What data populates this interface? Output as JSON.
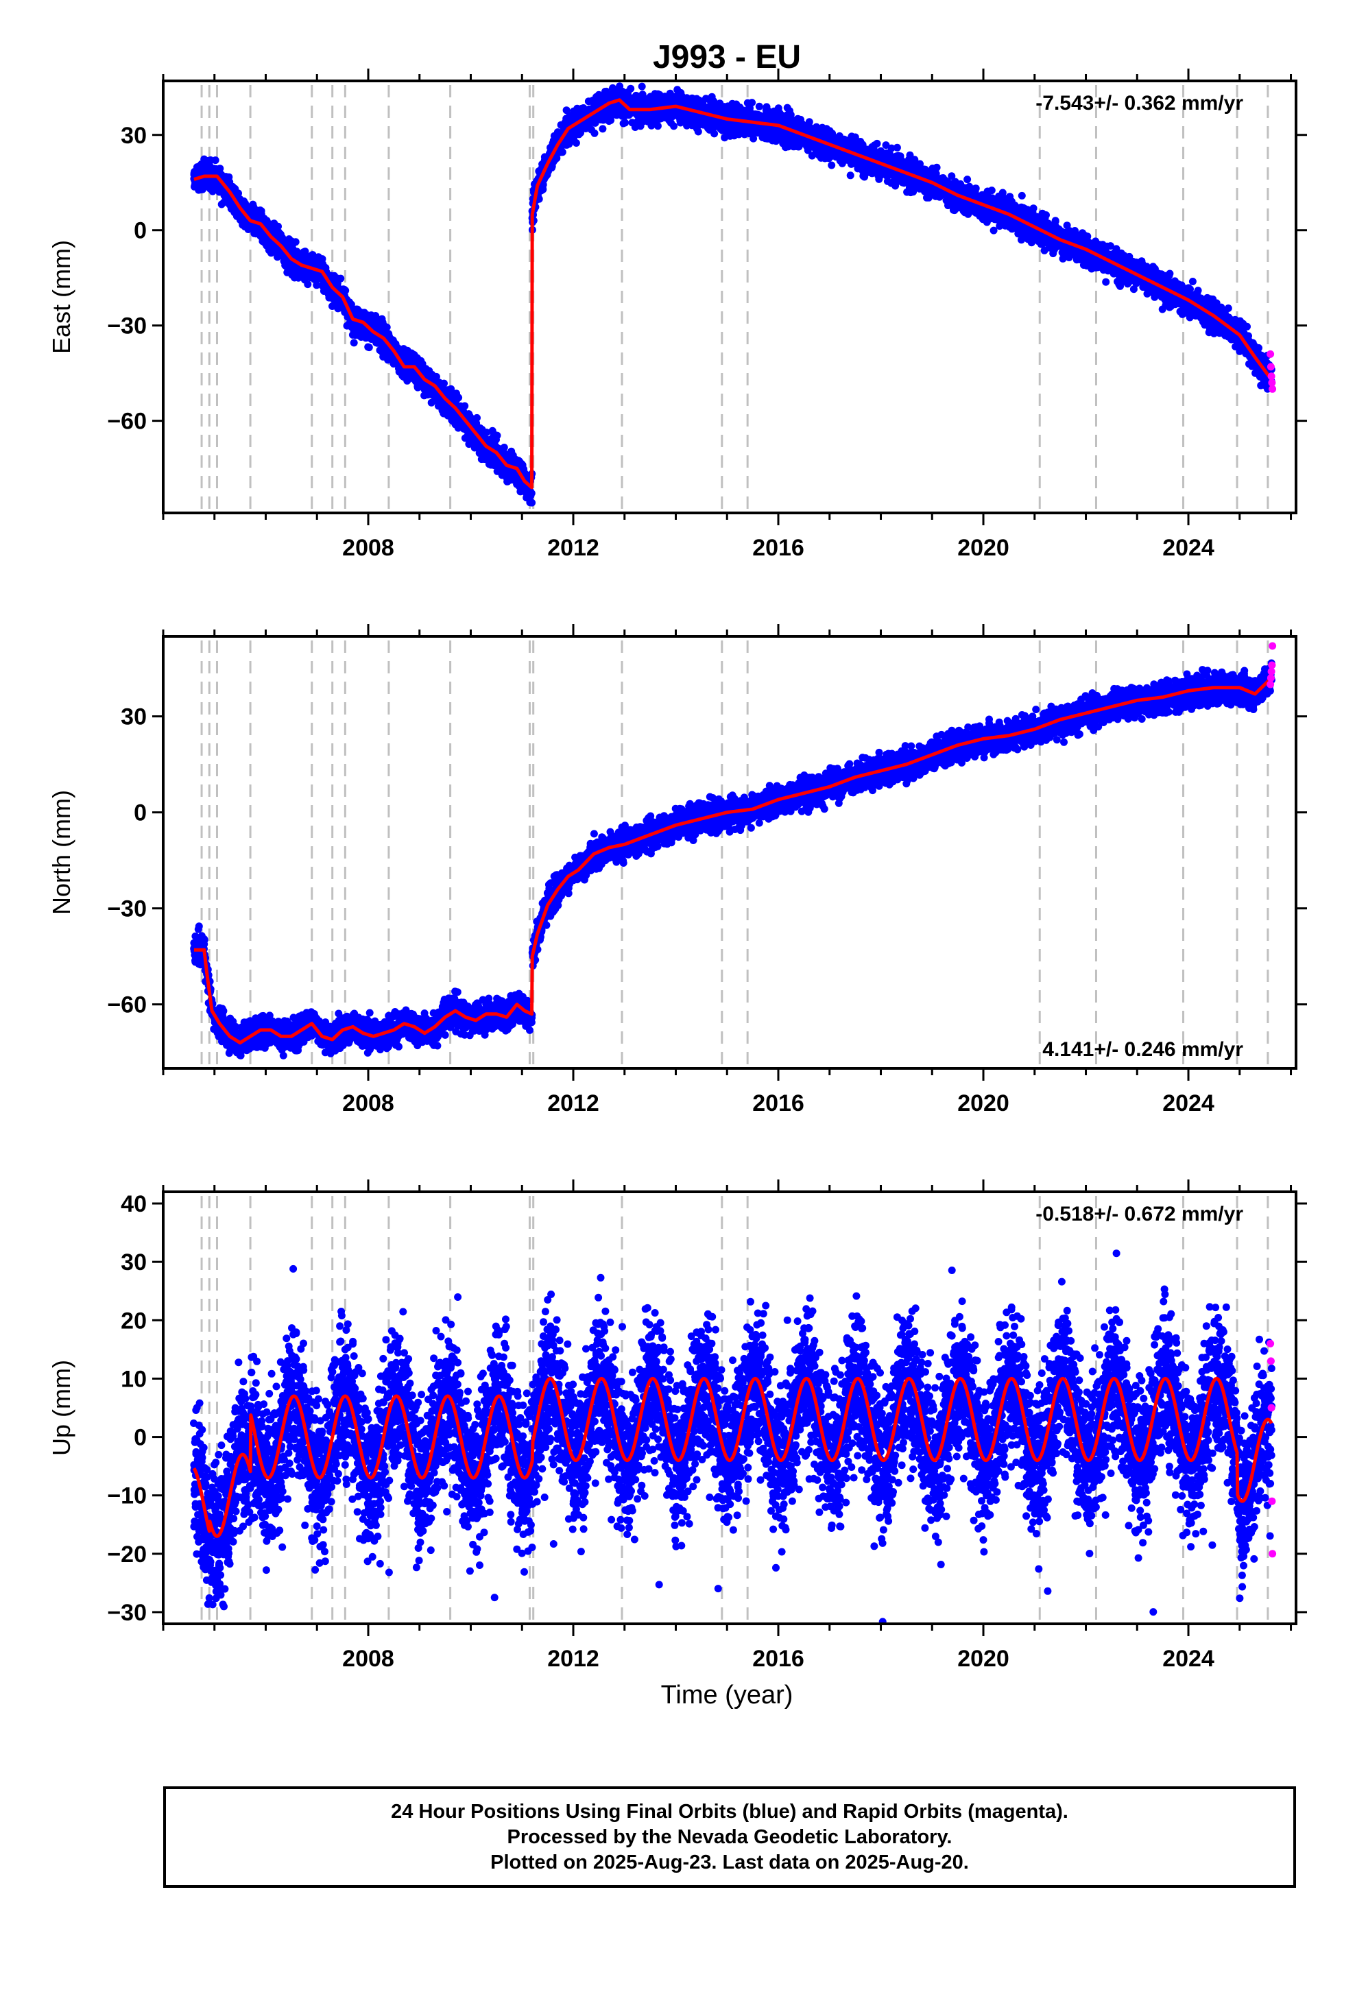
{
  "title": "J993 - EU",
  "colors": {
    "final_orbits": "#0000ff",
    "rapid_orbits": "#ff00ff",
    "model_fit": "#ff0000",
    "event_lines": "#c0c0c0",
    "axes": "#000000"
  },
  "xlabel": "Time (year)",
  "caption": {
    "line1": "24 Hour Positions Using Final Orbits (blue) and Rapid Orbits (magenta).",
    "line2": "Processed by the Nevada Geodetic Laboratory.",
    "line3": "Plotted on 2025-Aug-23. Last data on 2025-Aug-20."
  },
  "chart_data": [
    {
      "type": "scatter",
      "component": "east",
      "ylabel": "East (mm)",
      "rate_label": "-7.543+/- 0.362 mm/yr",
      "rate_label_position": "top-right",
      "xlim": [
        2004.0,
        2026.1
      ],
      "ylim": [
        -89,
        47
      ],
      "xticks": [
        2008,
        2012,
        2016,
        2020,
        2024
      ],
      "yticks": [
        30,
        0,
        -30,
        -60
      ],
      "grid": false,
      "event_lines": [
        2004.75,
        2004.9,
        2005.05,
        2005.7,
        2006.9,
        2007.3,
        2007.55,
        2008.4,
        2009.6,
        2011.15,
        2011.22,
        2012.95,
        2014.9,
        2015.4,
        2021.1,
        2022.2,
        2023.9,
        2024.95,
        2025.55
      ],
      "series": [
        {
          "role": "model",
          "x": [
            2004.6,
            2004.8,
            2004.85,
            2005.05,
            2005.3,
            2005.5,
            2005.7,
            2005.9,
            2006.1,
            2006.3,
            2006.5,
            2006.7,
            2006.9,
            2007.1,
            2007.3,
            2007.5,
            2007.7,
            2007.9,
            2008.1,
            2008.3,
            2008.5,
            2008.7,
            2008.9,
            2009.1,
            2009.3,
            2009.5,
            2009.7,
            2009.9,
            2010.1,
            2010.3,
            2010.5,
            2010.7,
            2010.9,
            2011.05,
            2011.19,
            2011.2,
            2011.3,
            2011.5,
            2011.7,
            2011.9,
            2012.1,
            2012.3,
            2012.5,
            2012.7,
            2012.9,
            2013.1,
            2013.5,
            2014.0,
            2014.5,
            2015.0,
            2015.5,
            2016.0,
            2016.5,
            2017.0,
            2017.5,
            2018.0,
            2018.5,
            2019.0,
            2019.5,
            2020.0,
            2020.5,
            2021.0,
            2021.5,
            2022.0,
            2022.5,
            2023.0,
            2023.5,
            2024.0,
            2024.5,
            2025.0,
            2025.3,
            2025.62
          ],
          "y": [
            16,
            17,
            17,
            17,
            12,
            7,
            3,
            2,
            -2,
            -5,
            -9,
            -11,
            -12,
            -13,
            -18,
            -21,
            -28,
            -29,
            -32,
            -34,
            -38,
            -43,
            -43,
            -47,
            -49,
            -53,
            -56,
            -60,
            -64,
            -68,
            -70,
            -74,
            -75,
            -79,
            -81,
            5,
            14,
            21,
            27,
            32,
            34,
            36,
            38,
            40,
            41,
            38,
            38,
            39,
            37,
            35,
            34,
            33,
            30,
            27,
            24,
            21,
            18,
            15,
            11,
            8,
            5,
            1,
            -3,
            -6,
            -10,
            -14,
            -18,
            -22,
            -27,
            -33,
            -40,
            -47
          ]
        },
        {
          "role": "rapid_orbits",
          "x": [
            2025.6,
            2025.61,
            2025.62,
            2025.63,
            2025.64
          ],
          "y": [
            -39,
            -43,
            -46,
            -48,
            -50
          ]
        }
      ]
    },
    {
      "type": "scatter",
      "component": "north",
      "ylabel": "North (mm)",
      "rate_label": "4.141+/- 0.246 mm/yr",
      "rate_label_position": "bottom-right",
      "xlim": [
        2004.0,
        2026.1
      ],
      "ylim": [
        -80,
        55
      ],
      "xticks": [
        2008,
        2012,
        2016,
        2020,
        2024
      ],
      "yticks": [
        30,
        0,
        -30,
        -60
      ],
      "grid": false,
      "event_lines": [
        2004.75,
        2004.9,
        2005.05,
        2005.7,
        2006.9,
        2007.3,
        2007.55,
        2008.4,
        2009.6,
        2011.15,
        2011.22,
        2012.95,
        2014.9,
        2015.4,
        2021.1,
        2022.2,
        2023.9,
        2024.95,
        2025.55
      ],
      "series": [
        {
          "role": "model",
          "x": [
            2004.6,
            2004.8,
            2004.85,
            2004.95,
            2005.1,
            2005.3,
            2005.5,
            2005.7,
            2005.9,
            2006.1,
            2006.3,
            2006.5,
            2006.7,
            2006.9,
            2007.1,
            2007.3,
            2007.5,
            2007.7,
            2007.9,
            2008.1,
            2008.3,
            2008.5,
            2008.7,
            2008.9,
            2009.1,
            2009.3,
            2009.5,
            2009.7,
            2009.9,
            2010.1,
            2010.3,
            2010.5,
            2010.7,
            2010.9,
            2011.05,
            2011.19,
            2011.2,
            2011.3,
            2011.5,
            2011.7,
            2011.9,
            2012.1,
            2012.4,
            2012.7,
            2013.0,
            2013.5,
            2014.0,
            2014.5,
            2015.0,
            2015.5,
            2016.0,
            2016.5,
            2017.0,
            2017.5,
            2018.0,
            2018.5,
            2019.0,
            2019.5,
            2020.0,
            2020.5,
            2021.0,
            2021.5,
            2022.0,
            2022.5,
            2023.0,
            2023.5,
            2024.0,
            2024.5,
            2025.0,
            2025.3,
            2025.62
          ],
          "y": [
            -43,
            -43,
            -50,
            -62,
            -66,
            -70,
            -72,
            -70,
            -68,
            -68,
            -70,
            -70,
            -68,
            -66,
            -70,
            -71,
            -68,
            -67,
            -69,
            -70,
            -69,
            -68,
            -66,
            -67,
            -69,
            -67,
            -64,
            -62,
            -64,
            -65,
            -63,
            -63,
            -64,
            -60,
            -62,
            -63,
            -45,
            -38,
            -29,
            -24,
            -20,
            -18,
            -13,
            -11,
            -10,
            -7,
            -4,
            -2,
            0,
            1,
            4,
            6,
            8,
            11,
            13,
            15,
            18,
            21,
            23,
            24,
            26,
            29,
            31,
            33,
            35,
            36,
            38,
            39,
            39,
            37,
            42
          ]
        },
        {
          "role": "rapid_orbits",
          "x": [
            2025.6,
            2025.61,
            2025.62,
            2025.63,
            2025.64
          ],
          "y": [
            40,
            42,
            44,
            46,
            52
          ]
        }
      ]
    },
    {
      "type": "scatter",
      "component": "up",
      "ylabel": "Up (mm)",
      "rate_label": "-0.518+/- 0.672 mm/yr",
      "rate_label_position": "top-right",
      "xlim": [
        2004.0,
        2026.1
      ],
      "ylim": [
        -32,
        42
      ],
      "xticks": [
        2008,
        2012,
        2016,
        2020,
        2024
      ],
      "yticks": [
        40,
        30,
        20,
        10,
        0,
        -10,
        -20,
        -30
      ],
      "grid": false,
      "event_lines": [
        2004.75,
        2004.9,
        2005.05,
        2005.7,
        2006.9,
        2007.3,
        2007.55,
        2008.4,
        2009.6,
        2011.15,
        2011.22,
        2012.95,
        2014.9,
        2015.4,
        2021.1,
        2022.2,
        2023.9,
        2024.95,
        2025.55
      ],
      "annual_model": {
        "x_start": 2004.6,
        "x_end": 2025.62,
        "offsets": [
          {
            "from": 2004.6,
            "to": 2004.9,
            "mean": -12
          },
          {
            "from": 2004.9,
            "to": 2005.7,
            "mean": -10
          },
          {
            "from": 2005.7,
            "to": 2011.2,
            "mean": 0
          },
          {
            "from": 2011.2,
            "to": 2024.95,
            "mean": 3
          },
          {
            "from": 2024.95,
            "to": 2025.62,
            "mean": -4
          }
        ],
        "amplitude": 7,
        "peak_phase": 0.55
      },
      "series": [
        {
          "role": "rapid_orbits",
          "x": [
            2025.6,
            2025.61,
            2025.62,
            2025.63,
            2025.64
          ],
          "y": [
            16,
            13,
            5,
            -11,
            -20
          ]
        }
      ]
    }
  ]
}
